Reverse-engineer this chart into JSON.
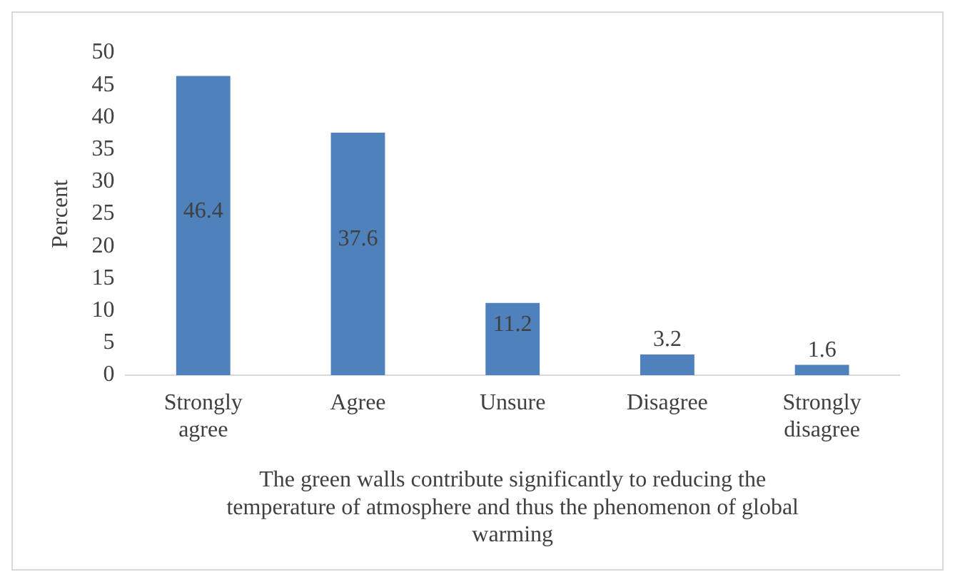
{
  "chart_data": {
    "type": "bar",
    "categories": [
      "Strongly agree",
      "Agree",
      "Unsure",
      "Disagree",
      "Strongly disagree"
    ],
    "values": [
      46.4,
      37.6,
      11.2,
      3.2,
      1.6
    ],
    "color": "#4f81bd",
    "ylabel": "Percent",
    "xlabel": "The green walls contribute significantly to reducing the temperature of atmosphere and thus the phenomenon of global warming",
    "ylim": [
      0,
      50
    ],
    "yticks": [
      0,
      5,
      10,
      15,
      20,
      25,
      30,
      35,
      40,
      45,
      50
    ],
    "grid": false,
    "legend": false,
    "data_labels": true
  }
}
